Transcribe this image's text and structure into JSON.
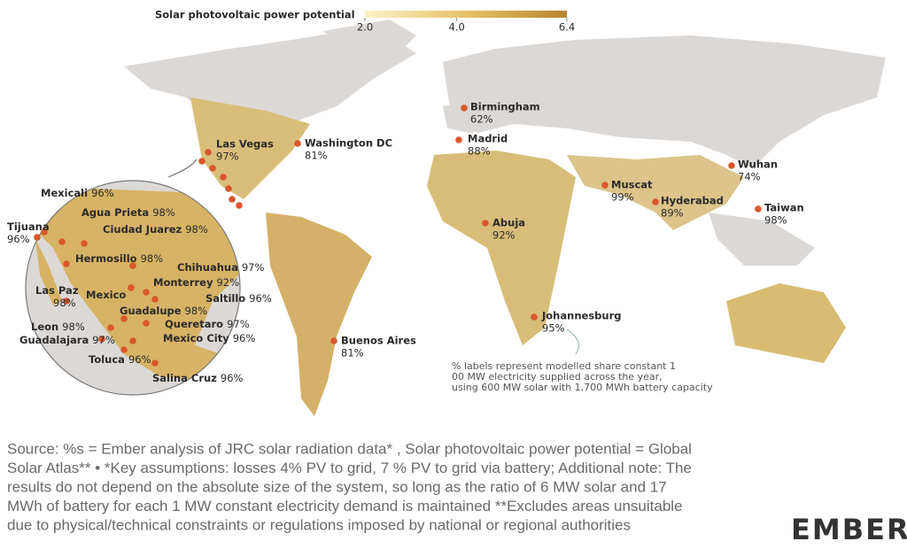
{
  "legend": {
    "title": "Solar photovoltaic power potential",
    "range": [
      2,
      6.4
    ],
    "ticks": [
      {
        "value": 2,
        "label": "2.0"
      },
      {
        "value": 4,
        "label": "4.0"
      },
      {
        "value": 6.4,
        "label": "6.4"
      }
    ]
  },
  "cities": [
    {
      "name": "Las Vegas",
      "share": "97%"
    },
    {
      "name": "Washington DC",
      "share": "81%"
    },
    {
      "name": "Birmingham",
      "share": "62%"
    },
    {
      "name": "Madrid",
      "share": "88%"
    },
    {
      "name": "Muscat",
      "share": "99%"
    },
    {
      "name": "Wuhan",
      "share": "74%"
    },
    {
      "name": "Hyderabad",
      "share": "89%"
    },
    {
      "name": "Taiwan",
      "share": "98%"
    },
    {
      "name": "Abuja",
      "share": "92%"
    },
    {
      "name": "Johannesburg",
      "share": "95%"
    },
    {
      "name": "Buenos Aires",
      "share": "81%"
    }
  ],
  "inset_cities": [
    {
      "name": "Mexicali",
      "share": "96%"
    },
    {
      "name": "Agua Prieta",
      "share": "98%"
    },
    {
      "name": "Tijuana",
      "share": "96%"
    },
    {
      "name": "Ciudad Juarez",
      "share": "98%"
    },
    {
      "name": "Hermosillo",
      "share": "98%"
    },
    {
      "name": "Chihuahua",
      "share": "97%"
    },
    {
      "name": "Monterrey",
      "share": "92%"
    },
    {
      "name": "Las Paz",
      "share": "98%"
    },
    {
      "name": "Saltillo",
      "share": "96%"
    },
    {
      "name": "Mexico"
    },
    {
      "name": "Guadalupe",
      "share": "98%"
    },
    {
      "name": "Leon",
      "share": "98%"
    },
    {
      "name": "Queretaro",
      "share": "97%"
    },
    {
      "name": "Guadalajara",
      "share": "97%"
    },
    {
      "name": "Mexico City",
      "share": "96%"
    },
    {
      "name": "Toluca",
      "share": "96%"
    },
    {
      "name": "Salina Cruz",
      "share": "96%"
    }
  ],
  "note": [
    "% labels represent modelled share constant 1",
    "00 MW electricity supplied across the year,",
    "using 600 MW solar with 1,700 MWh battery capacity"
  ],
  "source": [
    "Source: %s = Ember analysis of JRC solar radiation data* , Solar photovoltaic power potential = Global",
    "Solar Atlas** • *Key assumptions: losses 4% PV to grid, 7 % PV to grid via battery; Additional note: The",
    "results do not depend on the absolute size of the system, so long as the ratio of 6 MW solar and 17",
    "MWh of battery for each 1 MW constant electricity demand is maintained **Excludes areas unsuitable",
    "due to physical/technical constraints or regulations imposed by national or regional authorities"
  ],
  "logo": "EMBER"
}
